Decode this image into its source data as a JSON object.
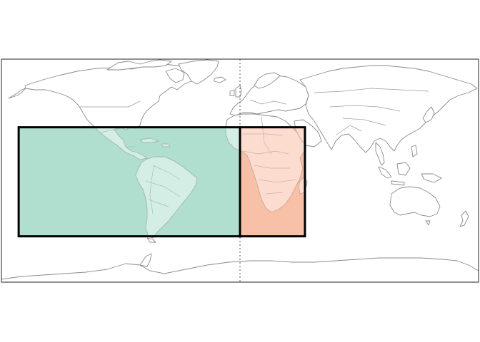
{
  "map": {
    "projection": "equirectangular",
    "extent": {
      "lon": [
        -180,
        180
      ],
      "lat": [
        -90,
        90
      ]
    },
    "graticule": false,
    "dateline_split_lon": 0,
    "colors": {
      "land_fill": "#ffffff",
      "coastline": "#8a8a8a",
      "frame": "#222222",
      "meridian": "#555555"
    },
    "regions": [
      {
        "id": "americas-atlantic",
        "lon": [
          -167,
          0
        ],
        "lat": [
          -53,
          35
        ],
        "fill": "#b0dfd0",
        "edge": "#000000"
      },
      {
        "id": "africa",
        "lon": [
          0,
          49
        ],
        "lat": [
          -53,
          35
        ],
        "fill": "#f9c0a8",
        "edge": "#000000"
      }
    ]
  }
}
